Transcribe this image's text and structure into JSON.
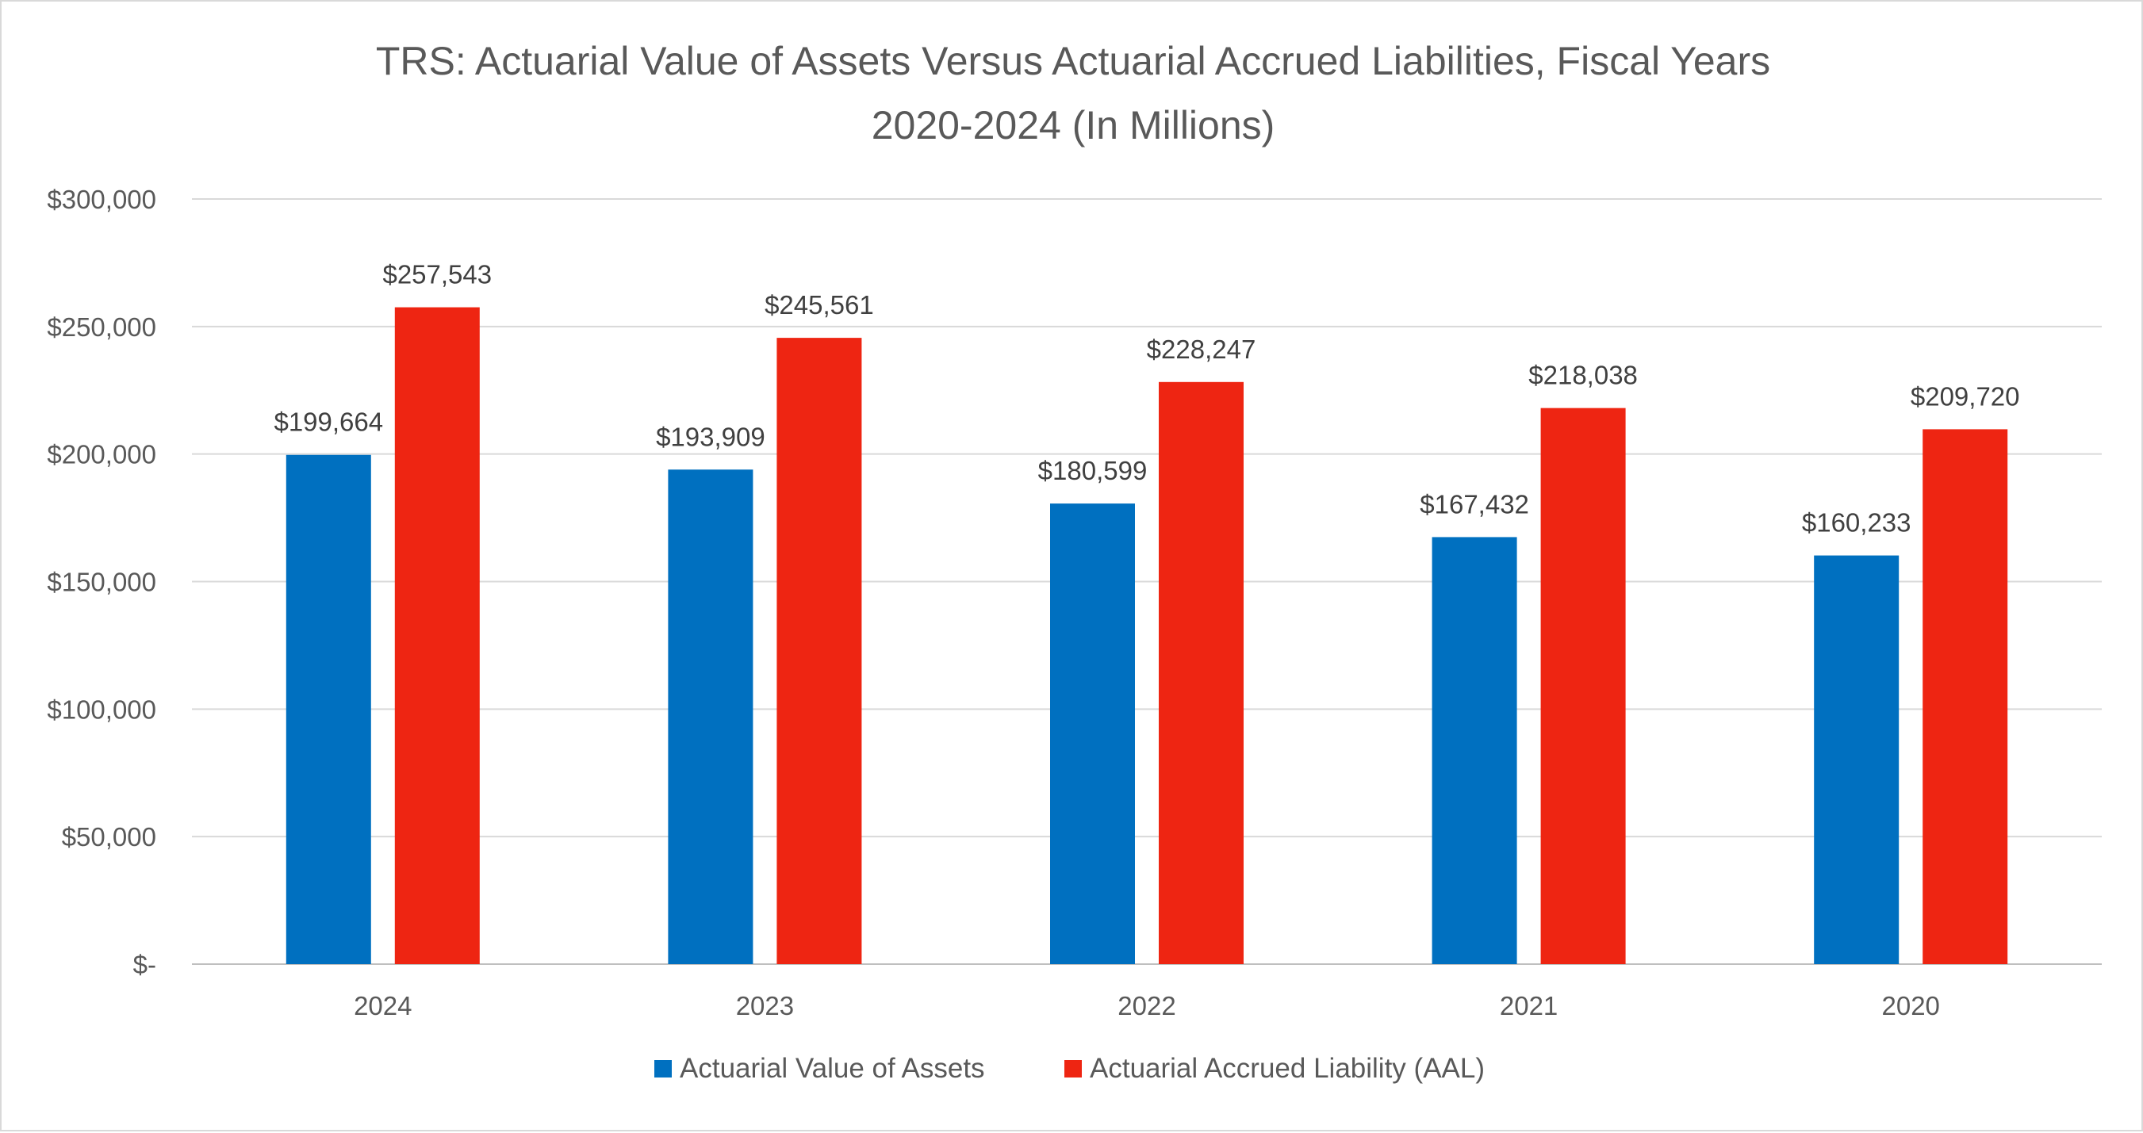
{
  "chart_data": {
    "type": "bar",
    "title_lines": [
      "TRS: Actuarial Value of Assets Versus Actuarial Accrued Liabilities, Fiscal Years",
      "2020-2024 (In Millions)"
    ],
    "categories": [
      "2024",
      "2023",
      "2022",
      "2021",
      "2020"
    ],
    "series": [
      {
        "name": "Actuarial Value of Assets",
        "color": "#0070c0",
        "values": [
          199664,
          193909,
          180599,
          167432,
          160233
        ],
        "labels": [
          "$199,664",
          "$193,909",
          "$180,599",
          "$167,432",
          "$160,233"
        ]
      },
      {
        "name": "Actuarial Accrued Liability (AAL)",
        "color": "#ee2512",
        "values": [
          257543,
          245561,
          228247,
          218038,
          209720
        ],
        "labels": [
          "$257,543",
          "$245,561",
          "$228,247",
          "$218,038",
          "$209,720"
        ]
      }
    ],
    "ylim": [
      0,
      300000
    ],
    "y_ticks": [
      {
        "value": 0,
        "label": "$-"
      },
      {
        "value": 50000,
        "label": "$50,000"
      },
      {
        "value": 100000,
        "label": "$100,000"
      },
      {
        "value": 150000,
        "label": "$150,000"
      },
      {
        "value": 200000,
        "label": "$200,000"
      },
      {
        "value": 250000,
        "label": "$250,000"
      },
      {
        "value": 300000,
        "label": "$300,000"
      }
    ],
    "xlabel": "",
    "ylabel": "",
    "grid": true,
    "legend_position": "bottom"
  }
}
